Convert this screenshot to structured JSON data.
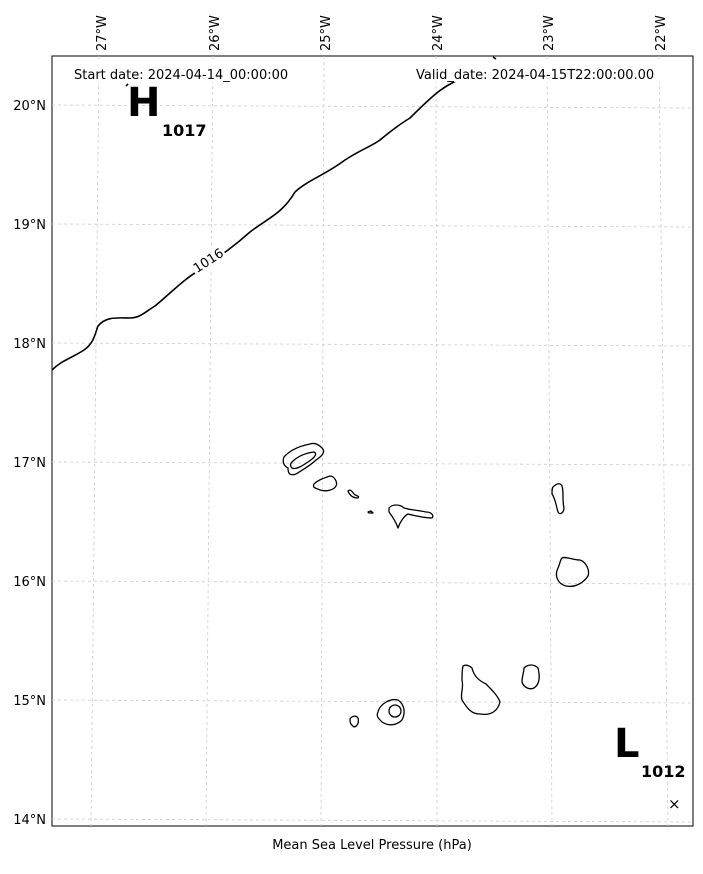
{
  "header": {
    "start_date": "Start date: 2024-04-14_00:00:00",
    "valid_date": "Valid_date: 2024-04-15T22:00:00.00"
  },
  "footer": {
    "caption": "Mean Sea Level Pressure (hPa)"
  },
  "axes": {
    "lon_labels": [
      "27°W",
      "26°W",
      "25°W",
      "24°W",
      "23°W",
      "22°W"
    ],
    "lat_labels": [
      "20°N",
      "19°N",
      "18°N",
      "17°N",
      "16°N",
      "15°N",
      "14°N"
    ]
  },
  "pressure_centers": {
    "high": {
      "letter": "H",
      "value": "1017"
    },
    "low": {
      "letter": "L",
      "value": "1012",
      "marker": "×"
    }
  },
  "isobars": [
    {
      "level": "1016"
    }
  ],
  "chart_data": {
    "type": "map",
    "title": "Mean Sea Level Pressure (hPa)",
    "lon_range": [
      -27.3,
      -21.8
    ],
    "lat_range": [
      14.0,
      20.4
    ],
    "grid": true,
    "isobar_levels": [
      1016
    ],
    "centers": [
      {
        "type": "H",
        "pressure": 1017,
        "lon": -26.6,
        "lat": 20.0
      },
      {
        "type": "L",
        "pressure": 1012,
        "lon": -22.0,
        "lat": 14.15
      }
    ]
  }
}
